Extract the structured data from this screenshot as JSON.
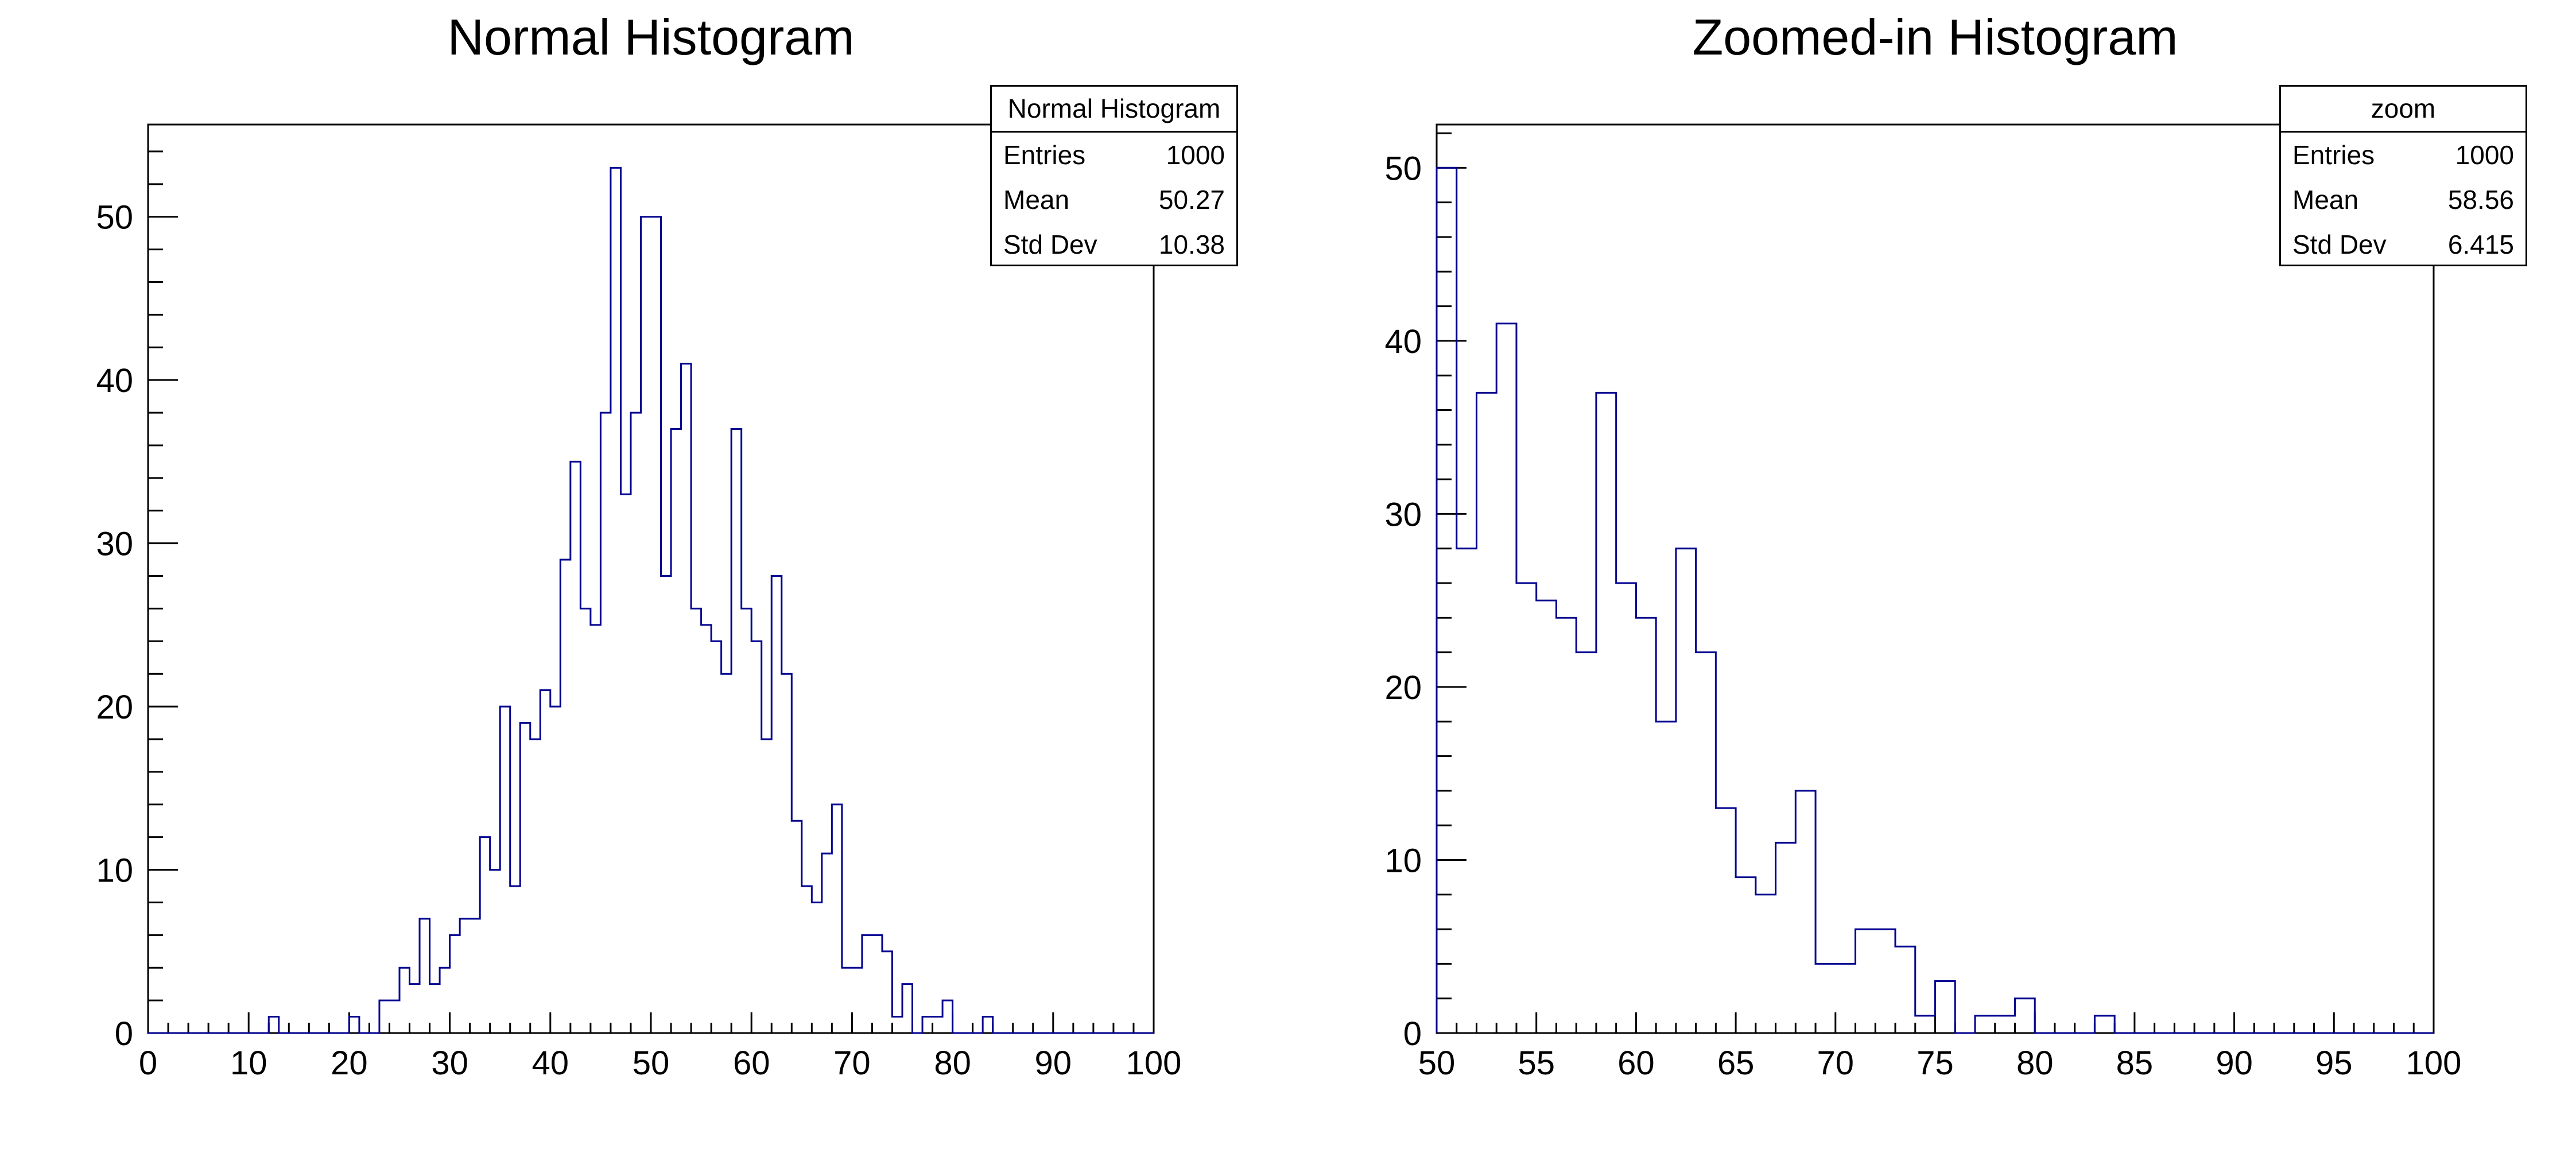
{
  "canvas": {
    "background": "#ffffff"
  },
  "colors": {
    "hist_line": "#000090",
    "axis": "#000000",
    "text": "#000000",
    "stats_bg": "#ffffff"
  },
  "chart_data": [
    {
      "type": "histogram-step",
      "title": "Normal Histogram",
      "x": {
        "min": 0,
        "max": 100,
        "major_step": 10,
        "minor_step": 2,
        "tick_labels": [
          "0",
          "10",
          "20",
          "30",
          "40",
          "50",
          "60",
          "70",
          "80",
          "90",
          "100"
        ]
      },
      "y": {
        "min": 0,
        "max": 55.65,
        "major_step": 10,
        "minor_step": 2,
        "tick_labels": [
          "0",
          "10",
          "20",
          "30",
          "40",
          "50"
        ]
      },
      "bin_start": 0,
      "bin_width": 1,
      "values": [
        0,
        0,
        0,
        0,
        0,
        0,
        0,
        0,
        0,
        0,
        0,
        0,
        1,
        0,
        0,
        0,
        0,
        0,
        0,
        0,
        1,
        0,
        0,
        2,
        2,
        4,
        3,
        7,
        3,
        4,
        6,
        7,
        7,
        12,
        10,
        20,
        9,
        19,
        18,
        21,
        20,
        29,
        35,
        26,
        25,
        38,
        53,
        33,
        38,
        50,
        50,
        28,
        37,
        41,
        26,
        25,
        24,
        22,
        37,
        26,
        24,
        18,
        28,
        22,
        13,
        9,
        8,
        11,
        14,
        4,
        4,
        6,
        6,
        5,
        1,
        3,
        0,
        1,
        1,
        2,
        0,
        0,
        0,
        1,
        0,
        0,
        0,
        0,
        0,
        0,
        0,
        0,
        0,
        0,
        0,
        0,
        0,
        0,
        0,
        0
      ],
      "stats": {
        "title": "Normal Histogram",
        "rows": [
          {
            "label": "Entries",
            "value": "1000"
          },
          {
            "label": "Mean",
            "value": "50.27"
          },
          {
            "label": "Std Dev",
            "value": "10.38"
          }
        ]
      },
      "legend_position": "top-right",
      "grid": false
    },
    {
      "type": "histogram-step",
      "title": "Zoomed-in Histogram",
      "x": {
        "min": 50,
        "max": 100,
        "major_step": 5,
        "minor_step": 1,
        "tick_labels": [
          "50",
          "55",
          "60",
          "65",
          "70",
          "75",
          "80",
          "85",
          "90",
          "95",
          "100"
        ]
      },
      "y": {
        "min": 0,
        "max": 52.5,
        "major_step": 10,
        "minor_step": 2,
        "tick_labels": [
          "0",
          "10",
          "20",
          "30",
          "40",
          "50"
        ]
      },
      "bin_start": 50,
      "bin_width": 1,
      "values": [
        50,
        28,
        37,
        41,
        26,
        25,
        24,
        22,
        37,
        26,
        24,
        18,
        28,
        22,
        13,
        9,
        8,
        11,
        14,
        4,
        4,
        6,
        6,
        5,
        1,
        3,
        0,
        1,
        1,
        2,
        0,
        0,
        0,
        1,
        0,
        0,
        0,
        0,
        0,
        0,
        0,
        0,
        0,
        0,
        0,
        0,
        0,
        0,
        0,
        0
      ],
      "stats": {
        "title": "zoom",
        "rows": [
          {
            "label": "Entries",
            "value": "1000"
          },
          {
            "label": "Mean",
            "value": "58.56"
          },
          {
            "label": "Std Dev",
            "value": "6.415"
          }
        ]
      },
      "legend_position": "top-right",
      "grid": false
    }
  ]
}
